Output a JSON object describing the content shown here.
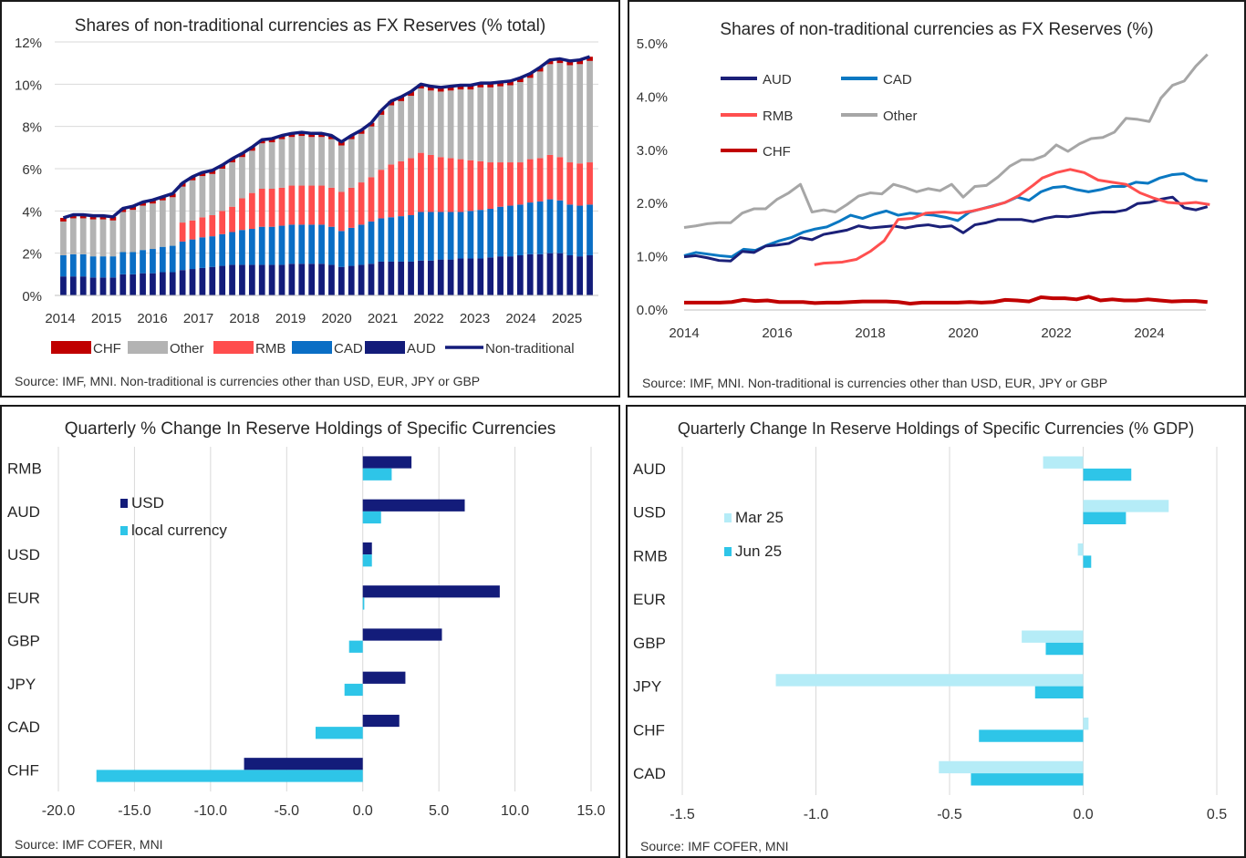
{
  "colors": {
    "navy": "#131c7a",
    "blue": "#0a6ec5",
    "red_bar": "#ff4d4d",
    "gray": "#b3b3b3",
    "chf_red": "#c00000",
    "cyan": "#2ec5e8",
    "light_cyan": "#b5ecf7",
    "line_aud": "#1b2078",
    "line_cad": "#0a78c2",
    "line_rmb": "#ff4f4f",
    "line_other": "#a6a6a6",
    "line_chf": "#c00000",
    "grid": "#d9d9d9"
  },
  "chart_data": [
    {
      "id": "stacked",
      "type": "bar",
      "title": "Shares of non-traditional currencies as FX Reserves (% total)",
      "source": "Source: IMF, MNI. Non-traditional is currencies other than USD, EUR, JPY or GBP",
      "ylim": [
        0,
        12
      ],
      "y_ticks": [
        "0%",
        "2%",
        "4%",
        "6%",
        "8%",
        "10%",
        "12%"
      ],
      "x_ticks": [
        "2014",
        "2015",
        "2016",
        "2017",
        "2018",
        "2019",
        "2020",
        "2021",
        "2022",
        "2023",
        "2024",
        "2025"
      ],
      "legend": [
        "CHF",
        "Other",
        "RMB",
        "CAD",
        "AUD",
        "Non-traditional"
      ],
      "aud": [
        0.9,
        0.9,
        0.9,
        0.85,
        0.85,
        0.85,
        1.0,
        1.0,
        1.05,
        1.05,
        1.1,
        1.1,
        1.2,
        1.25,
        1.3,
        1.35,
        1.4,
        1.45,
        1.45,
        1.45,
        1.45,
        1.45,
        1.45,
        1.5,
        1.5,
        1.5,
        1.5,
        1.45,
        1.35,
        1.4,
        1.45,
        1.5,
        1.6,
        1.6,
        1.6,
        1.6,
        1.65,
        1.65,
        1.7,
        1.7,
        1.75,
        1.75,
        1.75,
        1.8,
        1.85,
        1.85,
        1.9,
        1.95,
        1.95,
        2.0,
        2.0,
        1.9,
        1.85,
        1.9
      ],
      "cad": [
        1.0,
        1.05,
        1.05,
        1.0,
        1.0,
        1.0,
        1.05,
        1.05,
        1.1,
        1.15,
        1.2,
        1.25,
        1.35,
        1.4,
        1.45,
        1.45,
        1.5,
        1.55,
        1.65,
        1.7,
        1.8,
        1.8,
        1.85,
        1.85,
        1.85,
        1.85,
        1.85,
        1.8,
        1.7,
        1.8,
        1.9,
        2.0,
        2.05,
        2.1,
        2.15,
        2.2,
        2.3,
        2.3,
        2.25,
        2.25,
        2.2,
        2.25,
        2.3,
        2.3,
        2.35,
        2.4,
        2.4,
        2.45,
        2.5,
        2.55,
        2.5,
        2.4,
        2.4,
        2.4
      ],
      "rmb": [
        0,
        0,
        0,
        0,
        0,
        0,
        0,
        0,
        0,
        0,
        0,
        0,
        0.9,
        0.9,
        0.95,
        1.0,
        1.1,
        1.2,
        1.5,
        1.7,
        1.8,
        1.8,
        1.8,
        1.85,
        1.85,
        1.85,
        1.85,
        1.85,
        1.85,
        1.9,
        2.0,
        2.1,
        2.3,
        2.5,
        2.6,
        2.7,
        2.8,
        2.7,
        2.6,
        2.55,
        2.5,
        2.4,
        2.3,
        2.2,
        2.1,
        2.05,
        2.0,
        2.05,
        2.05,
        2.1,
        2.05,
        2.0,
        2.0,
        2.0
      ],
      "other": [
        1.6,
        1.7,
        1.7,
        1.75,
        1.75,
        1.7,
        1.9,
        2.0,
        2.1,
        2.15,
        2.2,
        2.3,
        1.7,
        1.9,
        1.95,
        1.95,
        2.0,
        2.1,
        1.95,
        2.0,
        2.15,
        2.2,
        2.3,
        2.3,
        2.35,
        2.3,
        2.3,
        2.3,
        2.2,
        2.3,
        2.3,
        2.4,
        2.6,
        2.8,
        2.85,
        2.95,
        3.05,
        3.05,
        3.1,
        3.2,
        3.3,
        3.35,
        3.5,
        3.55,
        3.6,
        3.65,
        3.8,
        3.85,
        4.1,
        4.3,
        4.45,
        4.6,
        4.7,
        4.8
      ],
      "chf": [
        0.17,
        0.17,
        0.17,
        0.17,
        0.17,
        0.17,
        0.17,
        0.17,
        0.17,
        0.17,
        0.17,
        0.17,
        0.17,
        0.17,
        0.17,
        0.17,
        0.17,
        0.17,
        0.17,
        0.17,
        0.17,
        0.17,
        0.17,
        0.17,
        0.17,
        0.17,
        0.17,
        0.17,
        0.17,
        0.17,
        0.17,
        0.17,
        0.2,
        0.2,
        0.2,
        0.2,
        0.2,
        0.2,
        0.2,
        0.2,
        0.2,
        0.2,
        0.2,
        0.2,
        0.2,
        0.2,
        0.2,
        0.2,
        0.2,
        0.2,
        0.2,
        0.2,
        0.2,
        0.2
      ]
    },
    {
      "id": "lines",
      "type": "line",
      "title": "Shares of non-traditional currencies as FX Reserves (%)",
      "source": "Source: IMF, MNI. Non-traditional is currencies other than USD, EUR, JPY or GBP",
      "ylim": [
        0,
        5
      ],
      "y_ticks": [
        "0.0%",
        "1.0%",
        "2.0%",
        "3.0%",
        "4.0%",
        "5.0%"
      ],
      "x_ticks": [
        "2014",
        "2016",
        "2018",
        "2020",
        "2022",
        "2024"
      ],
      "legend": [
        "AUD",
        "CAD",
        "RMB",
        "Other",
        "CHF"
      ],
      "aud": [
        1.0,
        1.02,
        0.98,
        0.93,
        0.92,
        1.1,
        1.08,
        1.2,
        1.22,
        1.25,
        1.36,
        1.32,
        1.42,
        1.46,
        1.5,
        1.58,
        1.54,
        1.56,
        1.58,
        1.54,
        1.58,
        1.6,
        1.56,
        1.58,
        1.45,
        1.6,
        1.64,
        1.7,
        1.7,
        1.7,
        1.66,
        1.72,
        1.76,
        1.75,
        1.78,
        1.82,
        1.84,
        1.84,
        1.88,
        2.0,
        2.02,
        2.08,
        2.12,
        1.92,
        1.88,
        1.94
      ],
      "cad": [
        1.02,
        1.08,
        1.05,
        1.02,
        1.0,
        1.14,
        1.12,
        1.22,
        1.3,
        1.36,
        1.46,
        1.52,
        1.56,
        1.66,
        1.78,
        1.72,
        1.8,
        1.86,
        1.78,
        1.82,
        1.8,
        1.78,
        1.74,
        1.68,
        1.84,
        1.9,
        1.96,
        2.02,
        2.12,
        2.06,
        2.22,
        2.3,
        2.32,
        2.26,
        2.22,
        2.26,
        2.32,
        2.32,
        2.4,
        2.38,
        2.48,
        2.54,
        2.56,
        2.45,
        2.42
      ],
      "rmb_x": [
        16.8,
        17.0,
        17.4,
        17.7,
        18.0,
        18.3,
        18.6,
        18.9,
        19.2,
        19.6,
        19.9,
        20.2,
        20.6,
        20.9,
        21.2,
        21.5,
        21.7,
        22.0,
        22.3,
        22.6,
        22.9,
        23.2,
        23.5,
        23.8,
        24.1,
        24.4,
        24.7,
        25.0,
        25.3
      ],
      "rmb_y": [
        0.85,
        0.88,
        0.9,
        0.95,
        1.1,
        1.3,
        1.7,
        1.72,
        1.82,
        1.84,
        1.82,
        1.86,
        1.94,
        2.02,
        2.15,
        2.34,
        2.48,
        2.58,
        2.64,
        2.58,
        2.44,
        2.4,
        2.36,
        2.2,
        2.1,
        2.02,
        2.0,
        2.02,
        1.98
      ],
      "other": [
        1.55,
        1.58,
        1.62,
        1.64,
        1.64,
        1.82,
        1.9,
        1.9,
        2.08,
        2.2,
        2.36,
        1.84,
        1.88,
        1.84,
        1.98,
        2.14,
        2.2,
        2.18,
        2.36,
        2.3,
        2.22,
        2.28,
        2.24,
        2.36,
        2.12,
        2.32,
        2.34,
        2.5,
        2.7,
        2.82,
        2.82,
        2.9,
        3.1,
        2.98,
        3.12,
        3.22,
        3.24,
        3.34,
        3.6,
        3.58,
        3.54,
        3.98,
        4.22,
        4.3,
        4.58,
        4.8
      ],
      "chf": [
        0.14,
        0.14,
        0.14,
        0.14,
        0.15,
        0.19,
        0.17,
        0.18,
        0.15,
        0.15,
        0.15,
        0.13,
        0.14,
        0.14,
        0.15,
        0.16,
        0.16,
        0.16,
        0.15,
        0.12,
        0.14,
        0.14,
        0.14,
        0.14,
        0.15,
        0.14,
        0.15,
        0.19,
        0.18,
        0.16,
        0.24,
        0.22,
        0.22,
        0.2,
        0.25,
        0.18,
        0.2,
        0.18,
        0.18,
        0.2,
        0.18,
        0.16,
        0.17,
        0.17,
        0.15
      ]
    },
    {
      "id": "pct_change",
      "type": "bar",
      "orientation": "horizontal",
      "title": "Quarterly % Change In Reserve Holdings of Specific Currencies",
      "source": "Source: IMF COFER, MNI",
      "xlim": [
        -20,
        15
      ],
      "x_ticks": [
        "-20.0",
        "-15.0",
        "-10.0",
        "-5.0",
        "0.0",
        "5.0",
        "10.0",
        "15.0"
      ],
      "categories": [
        "RMB",
        "AUD",
        "USD",
        "EUR",
        "GBP",
        "JPY",
        "CAD",
        "CHF"
      ],
      "series": [
        {
          "name": "USD",
          "values": [
            3.2,
            6.7,
            0.6,
            9.0,
            5.2,
            2.8,
            2.4,
            -7.8
          ]
        },
        {
          "name": "local currency",
          "values": [
            1.9,
            1.2,
            0.6,
            0.1,
            -0.9,
            -1.2,
            -3.1,
            -17.5
          ]
        }
      ]
    },
    {
      "id": "gdp_change",
      "type": "bar",
      "orientation": "horizontal",
      "title": "Quarterly Change In Reserve Holdings of Specific Currencies (% GDP)",
      "source": "Source: IMF COFER, MNI",
      "xlim": [
        -1.5,
        0.5
      ],
      "x_ticks": [
        "-1.5",
        "-1.0",
        "-0.5",
        "0.0",
        "0.5"
      ],
      "categories": [
        "AUD",
        "USD",
        "RMB",
        "EUR",
        "GBP",
        "JPY",
        "CHF",
        "CAD"
      ],
      "series": [
        {
          "name": "Mar 25",
          "values": [
            -0.15,
            0.32,
            -0.02,
            0.0,
            -0.23,
            -1.15,
            0.02,
            -0.54
          ]
        },
        {
          "name": "Jun 25",
          "values": [
            0.18,
            0.16,
            0.03,
            0.0,
            -0.14,
            -0.18,
            -0.39,
            -0.42
          ]
        }
      ]
    }
  ]
}
